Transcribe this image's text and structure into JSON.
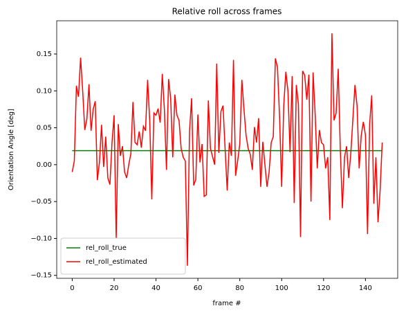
{
  "chart_data": {
    "type": "line",
    "title": "Relative roll across frames",
    "xlabel": "frame #",
    "ylabel": "Orientation Angle [deg]",
    "x": [
      0,
      1,
      2,
      3,
      4,
      5,
      6,
      7,
      8,
      9,
      10,
      11,
      12,
      13,
      14,
      15,
      16,
      17,
      18,
      19,
      20,
      21,
      22,
      23,
      24,
      25,
      26,
      27,
      28,
      29,
      30,
      31,
      32,
      33,
      34,
      35,
      36,
      37,
      38,
      39,
      40,
      41,
      42,
      43,
      44,
      45,
      46,
      47,
      48,
      49,
      50,
      51,
      52,
      53,
      54,
      55,
      56,
      57,
      58,
      59,
      60,
      61,
      62,
      63,
      64,
      65,
      66,
      67,
      68,
      69,
      70,
      71,
      72,
      73,
      74,
      75,
      76,
      77,
      78,
      79,
      80,
      81,
      82,
      83,
      84,
      85,
      86,
      87,
      88,
      89,
      90,
      91,
      92,
      93,
      94,
      95,
      96,
      97,
      98,
      99,
      100,
      101,
      102,
      103,
      104,
      105,
      106,
      107,
      108,
      109,
      110,
      111,
      112,
      113,
      114,
      115,
      116,
      117,
      118,
      119,
      120,
      121,
      122,
      123,
      124,
      125,
      126,
      127,
      128,
      129,
      130,
      131,
      132,
      133,
      134,
      135,
      136,
      137,
      138,
      139,
      140,
      141,
      142,
      143,
      144,
      145,
      146,
      147,
      148
    ],
    "series": [
      {
        "name": "rel_roll_true",
        "color": "#008000",
        "values": [
          0.019,
          0.019,
          0.019,
          0.019,
          0.019,
          0.019,
          0.019,
          0.019,
          0.019,
          0.019,
          0.019,
          0.019,
          0.019,
          0.019,
          0.019,
          0.019,
          0.019,
          0.019,
          0.019,
          0.019,
          0.019,
          0.019,
          0.019,
          0.019,
          0.019,
          0.019,
          0.019,
          0.019,
          0.019,
          0.019,
          0.019,
          0.019,
          0.019,
          0.019,
          0.019,
          0.019,
          0.019,
          0.019,
          0.019,
          0.019,
          0.019,
          0.019,
          0.019,
          0.019,
          0.019,
          0.019,
          0.019,
          0.019,
          0.019,
          0.019,
          0.019,
          0.019,
          0.019,
          0.019,
          0.019,
          0.019,
          0.019,
          0.019,
          0.019,
          0.019,
          0.019,
          0.019,
          0.019,
          0.019,
          0.019,
          0.019,
          0.019,
          0.019,
          0.019,
          0.019,
          0.019,
          0.019,
          0.019,
          0.019,
          0.019,
          0.019,
          0.019,
          0.019,
          0.019,
          0.019,
          0.019,
          0.019,
          0.019,
          0.019,
          0.019,
          0.019,
          0.019,
          0.019,
          0.019,
          0.019,
          0.019,
          0.019,
          0.019,
          0.019,
          0.019,
          0.019,
          0.019,
          0.019,
          0.019,
          0.019,
          0.019,
          0.019,
          0.019,
          0.019,
          0.019,
          0.019,
          0.019,
          0.019,
          0.019,
          0.019,
          0.019,
          0.019,
          0.019,
          0.019,
          0.019,
          0.019,
          0.019,
          0.019,
          0.019,
          0.019,
          0.019,
          0.019,
          0.019,
          0.019,
          0.019,
          0.019,
          0.019,
          0.019,
          0.019,
          0.019,
          0.019,
          0.019,
          0.019,
          0.019,
          0.019,
          0.019,
          0.019,
          0.019,
          0.019,
          0.019,
          0.019,
          0.019,
          0.019,
          0.019,
          0.019,
          0.019,
          0.019,
          0.019,
          0.019
        ]
      },
      {
        "name": "rel_roll_estimated",
        "color": "#ff0000",
        "values": [
          -0.01,
          0.005,
          0.107,
          0.092,
          0.145,
          0.1,
          0.047,
          0.062,
          0.109,
          0.046,
          0.075,
          0.086,
          -0.021,
          0.003,
          0.054,
          -0.003,
          0.038,
          -0.018,
          -0.027,
          0.03,
          0.067,
          -0.1,
          0.055,
          0.012,
          0.025,
          -0.01,
          -0.018,
          0.0,
          0.015,
          0.085,
          0.03,
          0.027,
          0.045,
          0.023,
          0.052,
          0.046,
          0.115,
          0.06,
          -0.047,
          0.07,
          0.067,
          0.076,
          0.057,
          0.123,
          0.075,
          -0.007,
          0.116,
          0.09,
          0.01,
          0.095,
          0.067,
          0.06,
          0.022,
          0.01,
          0.005,
          -0.137,
          0.045,
          0.09,
          -0.028,
          -0.02,
          0.068,
          0.003,
          0.028,
          -0.043,
          -0.041,
          0.087,
          0.022,
          0.011,
          0.0,
          0.137,
          0.016,
          0.072,
          0.08,
          0.021,
          -0.035,
          0.03,
          0.012,
          0.142,
          -0.015,
          0.005,
          0.028,
          0.115,
          0.075,
          0.04,
          0.022,
          0.014,
          -0.007,
          0.051,
          0.03,
          0.063,
          -0.03,
          0.031,
          0.0,
          -0.03,
          -0.01,
          0.03,
          0.038,
          0.144,
          0.132,
          0.065,
          -0.03,
          0.08,
          0.126,
          0.1,
          0.017,
          0.12,
          -0.052,
          0.108,
          0.082,
          -0.098,
          0.127,
          0.121,
          0.088,
          0.122,
          -0.05,
          0.125,
          0.068,
          -0.005,
          0.047,
          0.03,
          0.027,
          -0.005,
          0.01,
          -0.075,
          0.178,
          0.06,
          0.07,
          0.13,
          0.02,
          -0.059,
          0.01,
          0.025,
          -0.018,
          0.015,
          0.062,
          0.108,
          0.08,
          -0.005,
          0.04,
          0.058,
          0.04,
          -0.094,
          0.055,
          0.094,
          -0.053,
          0.01,
          -0.078,
          -0.035,
          0.03
        ]
      }
    ],
    "xlim": [
      -7.4,
      155.4
    ],
    "xticks": [
      0,
      20,
      40,
      60,
      80,
      100,
      120,
      140
    ],
    "ylim": [
      -0.154,
      0.195
    ],
    "yticks": [
      {
        "value": -0.15,
        "label": "−0.15"
      },
      {
        "value": -0.1,
        "label": "−0.10"
      },
      {
        "value": -0.05,
        "label": "−0.05"
      },
      {
        "value": 0,
        "label": "0.00"
      },
      {
        "value": 0.05,
        "label": "0.05"
      },
      {
        "value": 0.1,
        "label": "0.10"
      },
      {
        "value": 0.15,
        "label": "0.15"
      }
    ],
    "grid": false,
    "legend": "lower left"
  }
}
